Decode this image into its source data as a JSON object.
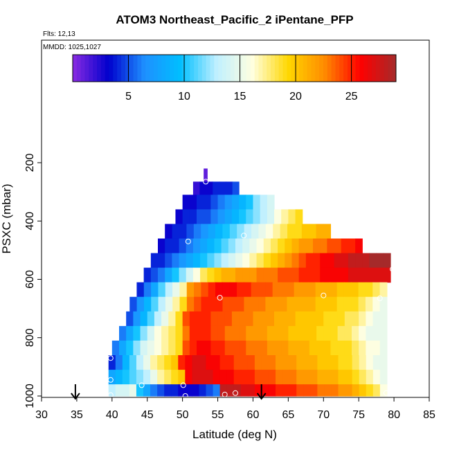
{
  "chart_data": {
    "type": "heatmap",
    "title": "ATOM3 Northeast_Pacific_2 iPentane_PFP",
    "flights_label": "Flts: 12,13",
    "dates_label": "MMDD: 1025,1027",
    "xlabel": "Latitude (deg N)",
    "ylabel": "PSXC (mbar)",
    "xlim": [
      30,
      85
    ],
    "ylim": [
      1000,
      0
    ],
    "x_ticks": [
      "30",
      "35",
      "40",
      "45",
      "50",
      "55",
      "60",
      "65",
      "70",
      "75",
      "80",
      "85"
    ],
    "y_ticks": [
      "200",
      "400",
      "600",
      "800",
      "1000"
    ],
    "colorbar": {
      "range": [
        0,
        29
      ],
      "ticks": [
        "5",
        "10",
        "15",
        "20",
        "25"
      ],
      "colors": [
        "#8a2be2",
        "#0000cd",
        "#1e90ff",
        "#00bfff",
        "#bfefff",
        "#ffffe0",
        "#ffd700",
        "#ff8c00",
        "#ff0000",
        "#a52a2a"
      ]
    },
    "rows": [
      {
        "p_top": 220,
        "p_bot": 265,
        "lat_start": 53.0,
        "lat_end": 53.5,
        "values": [
          1
        ]
      },
      {
        "p_top": 265,
        "p_bot": 310,
        "lat_start": 51.5,
        "lat_end": 58.0,
        "values": [
          2,
          3,
          3,
          4,
          4,
          4,
          5
        ]
      },
      {
        "p_top": 310,
        "p_bot": 360,
        "lat_start": 50.0,
        "lat_end": 63.0,
        "values": [
          3,
          3,
          4,
          4,
          5,
          6,
          7,
          8,
          9,
          10,
          12,
          13,
          14
        ]
      },
      {
        "p_top": 360,
        "p_bot": 410,
        "lat_start": 49.0,
        "lat_end": 67.0,
        "values": [
          3,
          4,
          4,
          5,
          5,
          6,
          7,
          8,
          9,
          10,
          11,
          12,
          13,
          14,
          16,
          17,
          18,
          19
        ]
      },
      {
        "p_top": 410,
        "p_bot": 460,
        "lat_start": 47.5,
        "lat_end": 71.0,
        "values": [
          3,
          4,
          4,
          5,
          6,
          7,
          8,
          9,
          10,
          11,
          12,
          13,
          14,
          15,
          16,
          17,
          18,
          19,
          19,
          20,
          20,
          21,
          21
        ]
      },
      {
        "p_top": 460,
        "p_bot": 510,
        "lat_start": 46.5,
        "lat_end": 75.5,
        "values": [
          3,
          4,
          4,
          5,
          6,
          7,
          8,
          9,
          10,
          11,
          12,
          13,
          14,
          15,
          16,
          17,
          18,
          19,
          20,
          21,
          22,
          22,
          23,
          23,
          24,
          24,
          25,
          25,
          26
        ]
      },
      {
        "p_top": 510,
        "p_bot": 560,
        "lat_start": 45.5,
        "lat_end": 79.5,
        "values": [
          4,
          4,
          5,
          6,
          7,
          8,
          9,
          10,
          11,
          12,
          13,
          14,
          15,
          16,
          17,
          18,
          19,
          20,
          21,
          22,
          23,
          24,
          25,
          25,
          26,
          26,
          27,
          27,
          28,
          28,
          28,
          29,
          29,
          29
        ]
      },
      {
        "p_top": 560,
        "p_bot": 610,
        "lat_start": 44.5,
        "lat_end": 79.5,
        "values": [
          4,
          5,
          6,
          8,
          10,
          12,
          14,
          16,
          18,
          19,
          20,
          21,
          21,
          22,
          22,
          22,
          23,
          23,
          23,
          24,
          24,
          24,
          25,
          25,
          25,
          26,
          26,
          26,
          26,
          27,
          27,
          27,
          27,
          27,
          27
        ]
      },
      {
        "p_top": 610,
        "p_bot": 660,
        "lat_start": 43.5,
        "lat_end": 79.0,
        "values": [
          4,
          6,
          8,
          11,
          13,
          15,
          17,
          22,
          23,
          24,
          25,
          26,
          26,
          26,
          25,
          25,
          24,
          24,
          24,
          23,
          23,
          23,
          22,
          22,
          22,
          21,
          21,
          21,
          20,
          20,
          20,
          19,
          19,
          18,
          17
        ]
      },
      {
        "p_top": 660,
        "p_bot": 710,
        "lat_start": 42.5,
        "lat_end": 79.0,
        "values": [
          5,
          7,
          9,
          11,
          13,
          15,
          17,
          19,
          23,
          24,
          25,
          25,
          25,
          24,
          24,
          24,
          23,
          23,
          23,
          22,
          22,
          22,
          21,
          21,
          21,
          21,
          20,
          20,
          20,
          19,
          19,
          19,
          18,
          17,
          16,
          15
        ]
      },
      {
        "p_top": 710,
        "p_bot": 760,
        "lat_start": 42.0,
        "lat_end": 79.0,
        "values": [
          5,
          7,
          9,
          11,
          13,
          15,
          17,
          19,
          24,
          25,
          25,
          25,
          24,
          24,
          24,
          23,
          23,
          23,
          22,
          22,
          22,
          21,
          21,
          21,
          20,
          20,
          20,
          20,
          19,
          19,
          19,
          18,
          18,
          17,
          16,
          15,
          15
        ]
      },
      {
        "p_top": 760,
        "p_bot": 810,
        "lat_start": 41.0,
        "lat_end": 79.0,
        "values": [
          6,
          8,
          10,
          12,
          14,
          16,
          17,
          18,
          19,
          23,
          25,
          25,
          25,
          24,
          24,
          23,
          23,
          23,
          22,
          22,
          22,
          21,
          21,
          21,
          20,
          20,
          20,
          20,
          19,
          19,
          19,
          18,
          18,
          17,
          16,
          15,
          15,
          15
        ]
      },
      {
        "p_top": 810,
        "p_bot": 860,
        "lat_start": 40.0,
        "lat_end": 79.0,
        "values": [
          6,
          8,
          10,
          12,
          14,
          15,
          16,
          17,
          18,
          19,
          24,
          25,
          26,
          26,
          25,
          25,
          24,
          24,
          24,
          23,
          23,
          23,
          22,
          22,
          22,
          21,
          21,
          21,
          20,
          20,
          20,
          19,
          19,
          19,
          18,
          17,
          16,
          16,
          15
        ]
      },
      {
        "p_top": 860,
        "p_bot": 910,
        "lat_start": 39.5,
        "lat_end": 79.0,
        "values": [
          4,
          6,
          9,
          11,
          13,
          15,
          17,
          18,
          19,
          20,
          25,
          26,
          27,
          27,
          26,
          26,
          25,
          25,
          24,
          24,
          24,
          23,
          23,
          23,
          22,
          22,
          22,
          21,
          21,
          21,
          20,
          20,
          20,
          19,
          19,
          18,
          17,
          16,
          15,
          15
        ]
      },
      {
        "p_top": 910,
        "p_bot": 960,
        "lat_start": 39.5,
        "lat_end": 79.0,
        "values": [
          8,
          9,
          10,
          11,
          12,
          13,
          15,
          17,
          18,
          19,
          20,
          26,
          27,
          27,
          27,
          26,
          26,
          26,
          25,
          25,
          25,
          24,
          24,
          24,
          23,
          23,
          23,
          22,
          22,
          22,
          21,
          21,
          21,
          20,
          20,
          19,
          18,
          17,
          16,
          15
        ]
      },
      {
        "p_top": 960,
        "p_bot": 1000,
        "lat_start": 39.5,
        "lat_end": 79.0,
        "values": [
          13,
          14,
          14,
          15,
          10,
          8,
          6,
          5,
          4,
          4,
          3,
          3,
          3,
          4,
          5,
          6,
          28,
          28,
          28,
          27,
          27,
          26,
          26,
          26,
          25,
          25,
          25,
          24,
          24,
          24,
          23,
          23,
          23,
          22,
          22,
          21,
          20,
          19,
          18,
          16
        ]
      }
    ],
    "sample_points": [
      {
        "lat": 53.3,
        "p": 265
      },
      {
        "lat": 58.7,
        "p": 450
      },
      {
        "lat": 50.8,
        "p": 470
      },
      {
        "lat": 79.8,
        "p": 565
      },
      {
        "lat": 70.0,
        "p": 655
      },
      {
        "lat": 55.3,
        "p": 663
      },
      {
        "lat": 78.0,
        "p": 665
      },
      {
        "lat": 39.8,
        "p": 870
      },
      {
        "lat": 39.8,
        "p": 945
      },
      {
        "lat": 44.2,
        "p": 963
      },
      {
        "lat": 50.1,
        "p": 963
      },
      {
        "lat": 57.5,
        "p": 990
      },
      {
        "lat": 56.0,
        "p": 995
      },
      {
        "lat": 78.9,
        "p": 990
      },
      {
        "lat": 39.8,
        "p": 997
      },
      {
        "lat": 50.4,
        "p": 1000
      }
    ],
    "arrows": [
      {
        "lat": 34.8,
        "p": 1000
      },
      {
        "lat": 61.2,
        "p": 1000
      }
    ]
  }
}
